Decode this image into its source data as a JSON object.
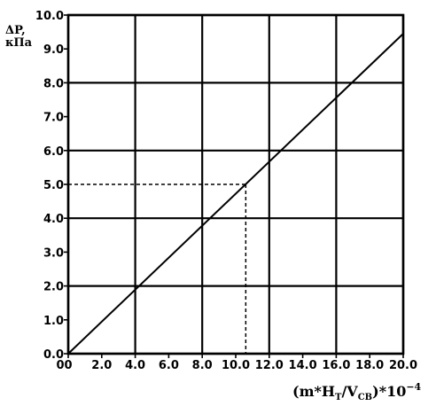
{
  "chart_data": {
    "type": "line",
    "ylabel_line1": "ΔP,",
    "ylabel_line2": "кПа",
    "xlabel_main": "(m*H",
    "xlabel_sub1": "T",
    "xlabel_mid": "/V",
    "xlabel_sub2": "CB",
    "xlabel_end": ")*10",
    "xlabel_exp": "−4",
    "xlim": [
      0,
      20
    ],
    "ylim": [
      0,
      10
    ],
    "grid": true,
    "x_ticks": [
      0,
      2,
      4,
      6,
      8,
      10,
      12,
      14,
      16,
      18,
      20
    ],
    "x_tick_labels": [
      "0",
      "2.0",
      "4.0",
      "6.0",
      "8.0",
      "10.0",
      "12.0",
      "14.0",
      "16.0",
      "18.0",
      "20.0"
    ],
    "x_origin_label": "0",
    "y_ticks": [
      0,
      1,
      2,
      3,
      4,
      5,
      6,
      7,
      8,
      9,
      10
    ],
    "y_tick_labels": [
      "0.0",
      "1.0",
      "2.0",
      "3.0",
      "4.0",
      "5.0",
      "6.0",
      "7.0",
      "8.0",
      "9.0",
      "10.0"
    ],
    "x_grid_lines": [
      0,
      4,
      8,
      12,
      16,
      20
    ],
    "y_grid_lines": [
      0,
      2,
      4,
      6,
      8,
      10
    ],
    "series": [
      {
        "x": [
          0,
          20
        ],
        "y": [
          0,
          9.45
        ]
      }
    ],
    "reference": {
      "x": 10.6,
      "y": 5.0
    }
  }
}
